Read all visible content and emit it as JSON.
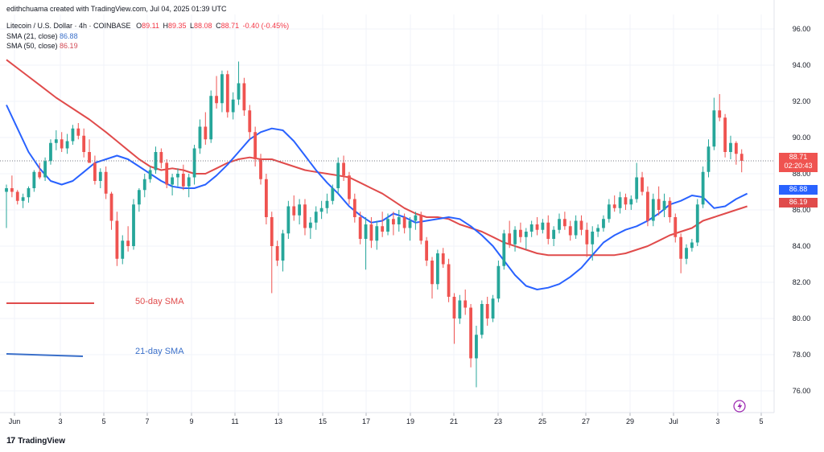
{
  "header": {
    "attribution": "edithchuama created with TradingView.com, Jul 04, 2025 01:39 UTC",
    "symbol": "Litecoin / U.S. Dollar · 4h · COINBASE",
    "open_label": "O",
    "open": "89.11",
    "high_label": "H",
    "high": "89.35",
    "low_label": "L",
    "low": "88.08",
    "close_label": "C",
    "close": "88.71",
    "change": "-0.40 (-0.45%)",
    "sma21_label": "SMA (21, close)",
    "sma21_value": "86.88",
    "sma50_label": "SMA (50, close)",
    "sma50_value": "86.19"
  },
  "legend": {
    "sma50": "50-day SMA",
    "sma21": "21-day SMA"
  },
  "badges": {
    "last_price": "88.71",
    "countdown": "02:20:43",
    "sma21": "86.88",
    "sma50": "86.19"
  },
  "branding": {
    "logo_text": "TradingView",
    "logo_mark": "17"
  },
  "colors": {
    "up": "#26a69a",
    "down": "#ef5350",
    "sma21": "#2962ff",
    "sma50": "#e04b4b",
    "grid": "#f0f3fa",
    "axis_text": "#131722"
  },
  "chart_data": {
    "type": "candlestick",
    "timeframe": "4h",
    "y_axis": {
      "ticks": [
        76,
        78,
        80,
        82,
        84,
        86,
        88,
        90,
        92,
        94,
        96
      ],
      "range": [
        74.8,
        96.8
      ]
    },
    "x_axis": {
      "ticks": [
        "Jun",
        "3",
        "5",
        "7",
        "9",
        "11",
        "13",
        "15",
        "17",
        "19",
        "21",
        "23",
        "25",
        "27",
        "29",
        "Jul",
        "3",
        "5"
      ]
    },
    "last_price": 88.71,
    "sma21_last": 86.88,
    "sma50_last": 86.19,
    "series": [
      {
        "name": "SMA (21, close)",
        "points": [
          [
            0,
            91.8
          ],
          [
            2,
            90.5
          ],
          [
            4,
            89.2
          ],
          [
            6,
            88.3
          ],
          [
            8,
            87.6
          ],
          [
            10,
            87.4
          ],
          [
            12,
            87.6
          ],
          [
            14,
            88.1
          ],
          [
            16,
            88.6
          ],
          [
            18,
            88.8
          ],
          [
            20,
            89.0
          ],
          [
            22,
            88.8
          ],
          [
            24,
            88.4
          ],
          [
            26,
            88.0
          ],
          [
            28,
            87.6
          ],
          [
            30,
            87.3
          ],
          [
            32,
            87.2
          ],
          [
            34,
            87.2
          ],
          [
            36,
            87.4
          ],
          [
            38,
            87.9
          ],
          [
            40,
            88.5
          ],
          [
            42,
            89.2
          ],
          [
            44,
            89.9
          ],
          [
            46,
            90.3
          ],
          [
            48,
            90.5
          ],
          [
            50,
            90.4
          ],
          [
            52,
            89.8
          ],
          [
            54,
            89.0
          ],
          [
            56,
            88.2
          ],
          [
            58,
            87.5
          ],
          [
            60,
            86.9
          ],
          [
            62,
            86.2
          ],
          [
            64,
            85.7
          ],
          [
            66,
            85.3
          ],
          [
            68,
            85.4
          ],
          [
            70,
            85.8
          ],
          [
            72,
            85.6
          ],
          [
            74,
            85.3
          ],
          [
            76,
            85.4
          ],
          [
            78,
            85.5
          ],
          [
            80,
            85.6
          ],
          [
            82,
            85.5
          ],
          [
            84,
            85.1
          ],
          [
            86,
            84.6
          ],
          [
            88,
            84.0
          ],
          [
            90,
            83.2
          ],
          [
            92,
            82.4
          ],
          [
            94,
            81.8
          ],
          [
            96,
            81.6
          ],
          [
            98,
            81.7
          ],
          [
            100,
            81.9
          ],
          [
            102,
            82.3
          ],
          [
            104,
            82.8
          ],
          [
            106,
            83.5
          ],
          [
            108,
            84.2
          ],
          [
            110,
            84.6
          ],
          [
            112,
            84.9
          ],
          [
            114,
            85.1
          ],
          [
            116,
            85.4
          ],
          [
            118,
            85.8
          ],
          [
            120,
            86.3
          ],
          [
            122,
            86.5
          ],
          [
            124,
            86.8
          ],
          [
            126,
            86.7
          ],
          [
            128,
            86.1
          ],
          [
            130,
            86.2
          ],
          [
            132,
            86.6
          ],
          [
            134,
            86.9
          ]
        ]
      },
      {
        "name": "SMA (50, close)",
        "points": [
          [
            0,
            94.3
          ],
          [
            3,
            93.6
          ],
          [
            6,
            92.9
          ],
          [
            9,
            92.2
          ],
          [
            12,
            91.6
          ],
          [
            15,
            91.0
          ],
          [
            18,
            90.3
          ],
          [
            20,
            89.8
          ],
          [
            22,
            89.3
          ],
          [
            24,
            88.8
          ],
          [
            26,
            88.4
          ],
          [
            28,
            88.2
          ],
          [
            30,
            88.3
          ],
          [
            32,
            88.2
          ],
          [
            34,
            88.0
          ],
          [
            36,
            88.0
          ],
          [
            38,
            88.3
          ],
          [
            40,
            88.6
          ],
          [
            42,
            88.8
          ],
          [
            44,
            88.9
          ],
          [
            46,
            88.8
          ],
          [
            48,
            88.8
          ],
          [
            50,
            88.6
          ],
          [
            52,
            88.4
          ],
          [
            54,
            88.2
          ],
          [
            56,
            88.1
          ],
          [
            58,
            88.0
          ],
          [
            60,
            87.9
          ],
          [
            62,
            87.8
          ],
          [
            64,
            87.5
          ],
          [
            66,
            87.2
          ],
          [
            68,
            86.9
          ],
          [
            70,
            86.5
          ],
          [
            72,
            86.1
          ],
          [
            74,
            85.8
          ],
          [
            76,
            85.6
          ],
          [
            78,
            85.6
          ],
          [
            80,
            85.5
          ],
          [
            82,
            85.2
          ],
          [
            84,
            85.0
          ],
          [
            86,
            84.8
          ],
          [
            88,
            84.5
          ],
          [
            90,
            84.2
          ],
          [
            92,
            84.0
          ],
          [
            94,
            83.8
          ],
          [
            96,
            83.6
          ],
          [
            98,
            83.5
          ],
          [
            100,
            83.5
          ],
          [
            102,
            83.5
          ],
          [
            104,
            83.5
          ],
          [
            106,
            83.5
          ],
          [
            108,
            83.5
          ],
          [
            110,
            83.5
          ],
          [
            112,
            83.6
          ],
          [
            114,
            83.8
          ],
          [
            116,
            84.0
          ],
          [
            118,
            84.3
          ],
          [
            120,
            84.6
          ],
          [
            122,
            84.8
          ],
          [
            124,
            85.0
          ],
          [
            126,
            85.4
          ],
          [
            128,
            85.6
          ],
          [
            130,
            85.8
          ],
          [
            132,
            86.0
          ],
          [
            134,
            86.2
          ]
        ]
      }
    ],
    "candles": [
      [
        87.0,
        87.4,
        85.0,
        87.2
      ],
      [
        87.2,
        87.9,
        86.7,
        87.0
      ],
      [
        87.0,
        87.1,
        86.3,
        86.5
      ],
      [
        86.5,
        86.9,
        86.1,
        86.7
      ],
      [
        86.7,
        87.3,
        86.4,
        87.2
      ],
      [
        87.2,
        88.2,
        87.0,
        88.1
      ],
      [
        88.1,
        88.6,
        87.7,
        87.8
      ],
      [
        87.8,
        88.9,
        87.6,
        88.7
      ],
      [
        88.7,
        89.9,
        88.5,
        89.7
      ],
      [
        89.7,
        90.4,
        89.3,
        89.9
      ],
      [
        89.9,
        90.3,
        89.2,
        89.4
      ],
      [
        89.4,
        90.2,
        89.1,
        89.8
      ],
      [
        89.8,
        90.7,
        89.6,
        90.5
      ],
      [
        90.5,
        90.8,
        89.9,
        90.1
      ],
      [
        90.1,
        90.5,
        88.9,
        89.2
      ],
      [
        89.2,
        89.9,
        88.7,
        88.6
      ],
      [
        88.6,
        89.0,
        87.4,
        87.6
      ],
      [
        87.6,
        88.3,
        87.2,
        88.1
      ],
      [
        88.1,
        88.4,
        86.6,
        86.9
      ],
      [
        86.9,
        87.0,
        84.9,
        85.4
      ],
      [
        85.4,
        85.9,
        82.9,
        83.3
      ],
      [
        83.3,
        84.6,
        83.0,
        84.3
      ],
      [
        84.3,
        85.1,
        83.7,
        84.0
      ],
      [
        84.0,
        86.6,
        83.8,
        86.3
      ],
      [
        86.3,
        87.2,
        85.9,
        87.1
      ],
      [
        87.1,
        88.0,
        86.7,
        87.7
      ],
      [
        87.7,
        88.4,
        87.5,
        88.2
      ],
      [
        88.2,
        89.5,
        88.0,
        89.2
      ],
      [
        89.2,
        89.4,
        88.3,
        88.6
      ],
      [
        88.6,
        88.8,
        87.2,
        87.4
      ],
      [
        87.4,
        88.0,
        86.8,
        87.8
      ],
      [
        87.8,
        88.3,
        87.3,
        88.0
      ],
      [
        88.0,
        88.5,
        87.1,
        87.3
      ],
      [
        87.3,
        88.0,
        86.7,
        87.8
      ],
      [
        87.8,
        89.6,
        87.4,
        89.4
      ],
      [
        89.4,
        91.0,
        89.1,
        90.6
      ],
      [
        90.6,
        91.4,
        89.6,
        89.9
      ],
      [
        89.9,
        92.6,
        89.7,
        92.3
      ],
      [
        92.3,
        93.4,
        91.6,
        91.9
      ],
      [
        91.9,
        93.7,
        91.4,
        93.5
      ],
      [
        93.5,
        93.7,
        91.1,
        91.4
      ],
      [
        91.4,
        92.5,
        91.0,
        92.1
      ],
      [
        92.1,
        94.2,
        91.8,
        93.0
      ],
      [
        93.0,
        93.3,
        91.2,
        91.5
      ],
      [
        91.5,
        91.8,
        89.9,
        90.3
      ],
      [
        90.3,
        90.6,
        88.4,
        88.8
      ],
      [
        88.8,
        89.1,
        87.4,
        87.7
      ],
      [
        87.7,
        88.0,
        85.2,
        85.6
      ],
      [
        85.6,
        85.9,
        81.4,
        84.0
      ],
      [
        84.0,
        84.3,
        82.9,
        83.2
      ],
      [
        83.2,
        84.9,
        82.6,
        84.7
      ],
      [
        84.7,
        86.5,
        84.4,
        86.2
      ],
      [
        86.2,
        86.8,
        85.4,
        85.7
      ],
      [
        85.7,
        86.6,
        85.2,
        86.3
      ],
      [
        86.3,
        86.6,
        84.6,
        85.0
      ],
      [
        85.0,
        85.6,
        84.4,
        85.3
      ],
      [
        85.3,
        86.2,
        84.9,
        85.9
      ],
      [
        85.9,
        86.5,
        85.5,
        86.1
      ],
      [
        86.1,
        86.9,
        85.8,
        86.5
      ],
      [
        86.5,
        87.4,
        86.3,
        87.2
      ],
      [
        87.2,
        88.9,
        86.9,
        88.6
      ],
      [
        88.6,
        89.0,
        87.6,
        87.9
      ],
      [
        87.9,
        88.1,
        86.3,
        86.6
      ],
      [
        86.6,
        86.9,
        85.3,
        85.6
      ],
      [
        85.6,
        85.9,
        84.1,
        84.4
      ],
      [
        84.4,
        85.6,
        82.7,
        85.2
      ],
      [
        85.2,
        85.6,
        83.9,
        84.3
      ],
      [
        84.3,
        85.4,
        83.8,
        85.1
      ],
      [
        85.1,
        85.9,
        84.5,
        84.8
      ],
      [
        84.8,
        85.8,
        84.6,
        85.5
      ],
      [
        85.5,
        85.9,
        84.6,
        85.2
      ],
      [
        85.2,
        86.0,
        84.8,
        85.6
      ],
      [
        85.6,
        85.8,
        84.7,
        85.0
      ],
      [
        85.0,
        85.6,
        84.3,
        85.4
      ],
      [
        85.4,
        85.9,
        84.9,
        85.7
      ],
      [
        85.7,
        85.9,
        84.1,
        84.3
      ],
      [
        84.3,
        84.5,
        82.9,
        83.2
      ],
      [
        83.2,
        83.4,
        81.1,
        81.9
      ],
      [
        81.9,
        83.8,
        81.6,
        83.6
      ],
      [
        83.6,
        83.9,
        82.8,
        83.0
      ],
      [
        83.0,
        83.3,
        80.9,
        81.2
      ],
      [
        81.2,
        81.4,
        78.6,
        80.0
      ],
      [
        80.0,
        81.3,
        79.7,
        81.0
      ],
      [
        81.0,
        81.6,
        80.2,
        80.6
      ],
      [
        80.6,
        80.8,
        77.3,
        77.8
      ],
      [
        77.8,
        79.6,
        76.2,
        79.1
      ],
      [
        79.1,
        81.0,
        78.9,
        80.8
      ],
      [
        80.8,
        81.2,
        79.6,
        80.0
      ],
      [
        80.0,
        81.3,
        79.8,
        81.1
      ],
      [
        81.1,
        83.2,
        80.9,
        82.9
      ],
      [
        82.9,
        84.9,
        82.7,
        84.7
      ],
      [
        84.7,
        85.4,
        83.9,
        84.1
      ],
      [
        84.1,
        85.1,
        83.7,
        84.9
      ],
      [
        84.9,
        85.3,
        84.2,
        84.5
      ],
      [
        84.5,
        85.0,
        83.8,
        84.8
      ],
      [
        84.8,
        85.4,
        84.5,
        85.2
      ],
      [
        85.2,
        85.6,
        84.6,
        84.9
      ],
      [
        84.9,
        85.5,
        84.7,
        85.3
      ],
      [
        85.3,
        85.7,
        84.1,
        84.4
      ],
      [
        84.4,
        85.1,
        84.0,
        84.9
      ],
      [
        84.9,
        85.8,
        84.7,
        85.5
      ],
      [
        85.5,
        85.9,
        84.9,
        85.1
      ],
      [
        85.1,
        85.4,
        84.3,
        84.6
      ],
      [
        84.6,
        85.7,
        84.4,
        85.4
      ],
      [
        85.4,
        85.7,
        84.6,
        84.9
      ],
      [
        84.9,
        85.3,
        83.4,
        84.1
      ],
      [
        84.1,
        85.1,
        83.2,
        84.8
      ],
      [
        84.8,
        85.2,
        84.5,
        85.0
      ],
      [
        85.0,
        85.7,
        84.8,
        85.5
      ],
      [
        85.5,
        86.6,
        85.3,
        86.3
      ],
      [
        86.3,
        86.8,
        85.9,
        86.1
      ],
      [
        86.1,
        87.0,
        85.8,
        86.7
      ],
      [
        86.7,
        86.9,
        86.0,
        86.3
      ],
      [
        86.3,
        86.8,
        86.0,
        86.6
      ],
      [
        86.6,
        88.6,
        86.4,
        87.8
      ],
      [
        87.8,
        88.1,
        86.8,
        87.0
      ],
      [
        87.0,
        87.3,
        85.1,
        85.4
      ],
      [
        85.4,
        86.9,
        85.1,
        86.6
      ],
      [
        86.6,
        87.3,
        85.7,
        86.0
      ],
      [
        86.0,
        86.9,
        85.6,
        86.5
      ],
      [
        86.5,
        86.7,
        85.3,
        85.6
      ],
      [
        85.6,
        85.8,
        84.2,
        84.5
      ],
      [
        84.5,
        84.7,
        82.5,
        83.3
      ],
      [
        83.3,
        84.1,
        83.0,
        83.9
      ],
      [
        83.9,
        84.4,
        83.7,
        84.2
      ],
      [
        84.2,
        86.6,
        84.0,
        86.3
      ],
      [
        86.3,
        88.4,
        86.1,
        88.1
      ],
      [
        88.1,
        89.9,
        87.8,
        89.5
      ],
      [
        89.5,
        92.2,
        89.3,
        91.5
      ],
      [
        91.5,
        92.4,
        90.9,
        91.1
      ],
      [
        91.1,
        91.3,
        88.9,
        89.2
      ],
      [
        89.2,
        90.1,
        88.8,
        89.7
      ],
      [
        89.7,
        89.8,
        88.5,
        89.1
      ],
      [
        89.1,
        89.35,
        88.08,
        88.71
      ]
    ]
  }
}
